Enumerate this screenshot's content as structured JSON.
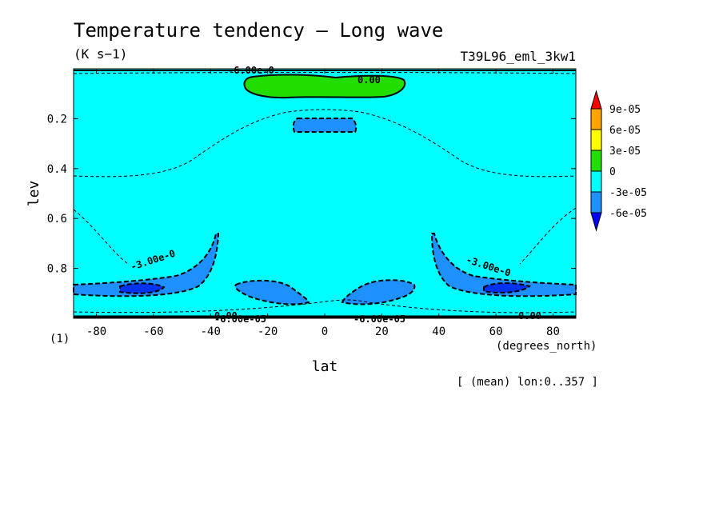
{
  "chart_data": {
    "type": "heatmap",
    "title": "Temperature tendency — Long wave",
    "units": "(K s−1)",
    "run_label": "T39L96_eml_3kw1",
    "xlabel": "lat",
    "ylabel": "lev",
    "x_units": "(degrees_north)",
    "y_corner_label": "(1)",
    "footnote": "[ (mean) lon:0..357 ]",
    "xlim": [
      -88,
      88
    ],
    "ylim": [
      0,
      1
    ],
    "y_inverted": true,
    "x_ticks": [
      "-80",
      "-60",
      "-40",
      "-20",
      "0",
      "20",
      "40",
      "60",
      "80"
    ],
    "y_ticks": [
      "0.2",
      "0.4",
      "0.6",
      "0.8"
    ],
    "colorbar": {
      "labels": [
        "9e-05",
        "6e-05",
        "3e-05",
        "0",
        "-3e-05",
        "-6e-05"
      ],
      "colors": [
        "#ff0000",
        "#ffa500",
        "#ffff00",
        "#22dd00",
        "#00ffff",
        "#1e90ff",
        "#0000ff"
      ]
    },
    "contour_labels": [
      "-6.00e-0",
      "0.00",
      "-3.00e-0",
      "-3.00e-0",
      "-6.00e-05",
      "-6.00e-05",
      "0.00",
      "0.00"
    ],
    "background_value_range": [
      -3e-05,
      0
    ],
    "regions": [
      {
        "name": "upper-equatorial-warming",
        "range": [
          0,
          3e-05
        ]
      },
      {
        "name": "equatorial-cooling-cell",
        "range": [
          -6e-05,
          -3e-05
        ]
      },
      {
        "name": "southern-low-level-cooling",
        "range": [
          -6e-05,
          -3e-05
        ]
      },
      {
        "name": "northern-low-level-cooling",
        "range": [
          -6e-05,
          -3e-05
        ]
      },
      {
        "name": "near-equator-low-level-cooling",
        "range": [
          -6e-05,
          -3e-05
        ]
      },
      {
        "name": "polar-core-cooling",
        "range": [
          -9e-05,
          -6e-05
        ]
      }
    ]
  }
}
